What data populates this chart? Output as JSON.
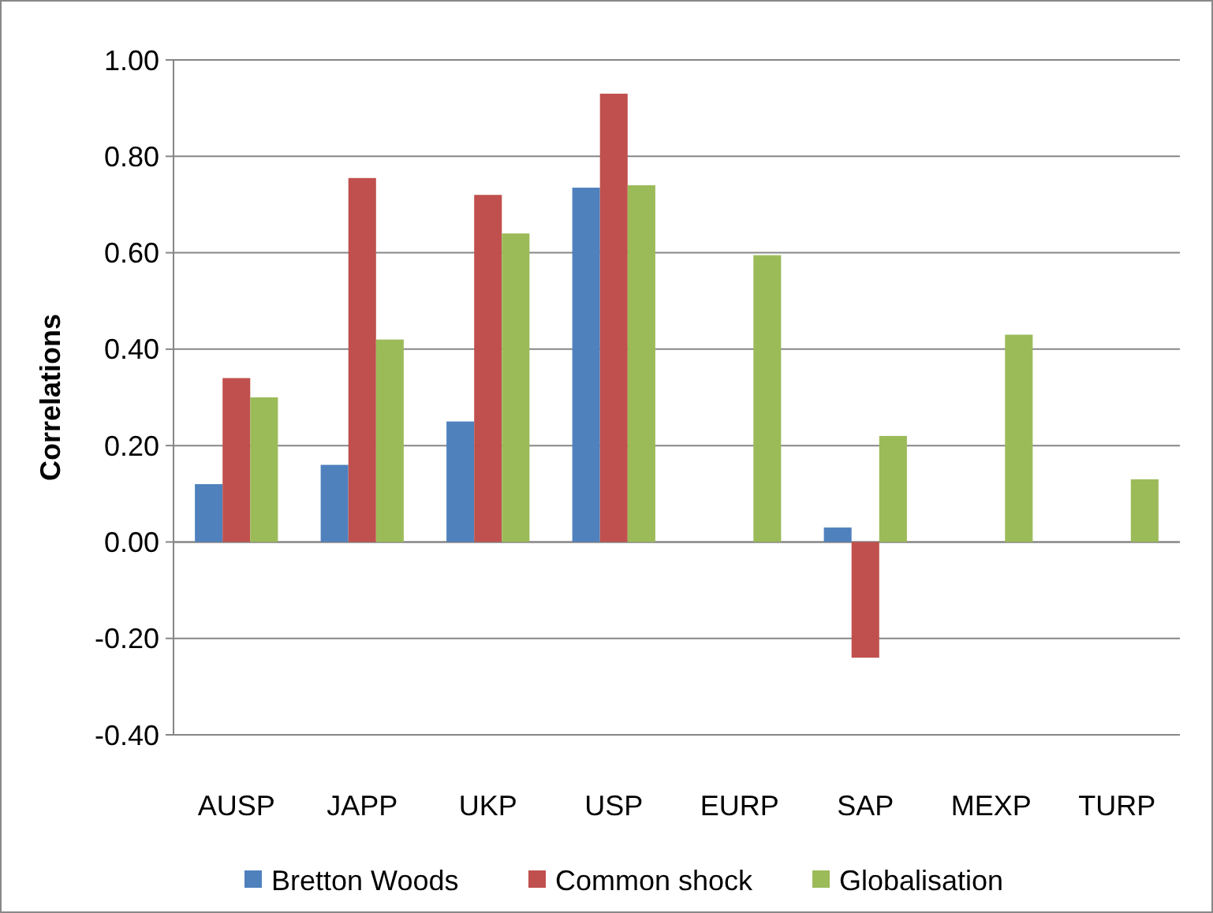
{
  "chart_data": {
    "type": "bar",
    "ylabel": "Correlations",
    "categories": [
      "AUSP",
      "JAPP",
      "UKP",
      "USP",
      "EURP",
      "SAP",
      "MEXP",
      "TURP"
    ],
    "series": [
      {
        "name": "Bretton Woods",
        "color": "#4f81bd",
        "values": [
          0.12,
          0.16,
          0.25,
          0.735,
          null,
          0.03,
          null,
          null
        ]
      },
      {
        "name": "Common shock",
        "color": "#c0504d",
        "values": [
          0.34,
          0.755,
          0.72,
          0.93,
          null,
          -0.24,
          null,
          null
        ]
      },
      {
        "name": "Globalisation",
        "color": "#9bbb59",
        "values": [
          0.3,
          0.42,
          0.64,
          0.74,
          0.595,
          0.22,
          0.43,
          0.13
        ]
      }
    ],
    "ylim": [
      -0.4,
      1.0
    ],
    "yticks": [
      {
        "value": -0.4,
        "label": "-0.40"
      },
      {
        "value": -0.2,
        "label": "-0.20"
      },
      {
        "value": 0,
        "label": "0.00"
      },
      {
        "value": 0.2,
        "label": "0.20"
      },
      {
        "value": 0.4,
        "label": "0.40"
      },
      {
        "value": 0.6,
        "label": "0.60"
      },
      {
        "value": 0.8,
        "label": "0.80"
      },
      {
        "value": 1.0,
        "label": "1.00"
      }
    ],
    "grid": "y",
    "legend": "bottom"
  }
}
